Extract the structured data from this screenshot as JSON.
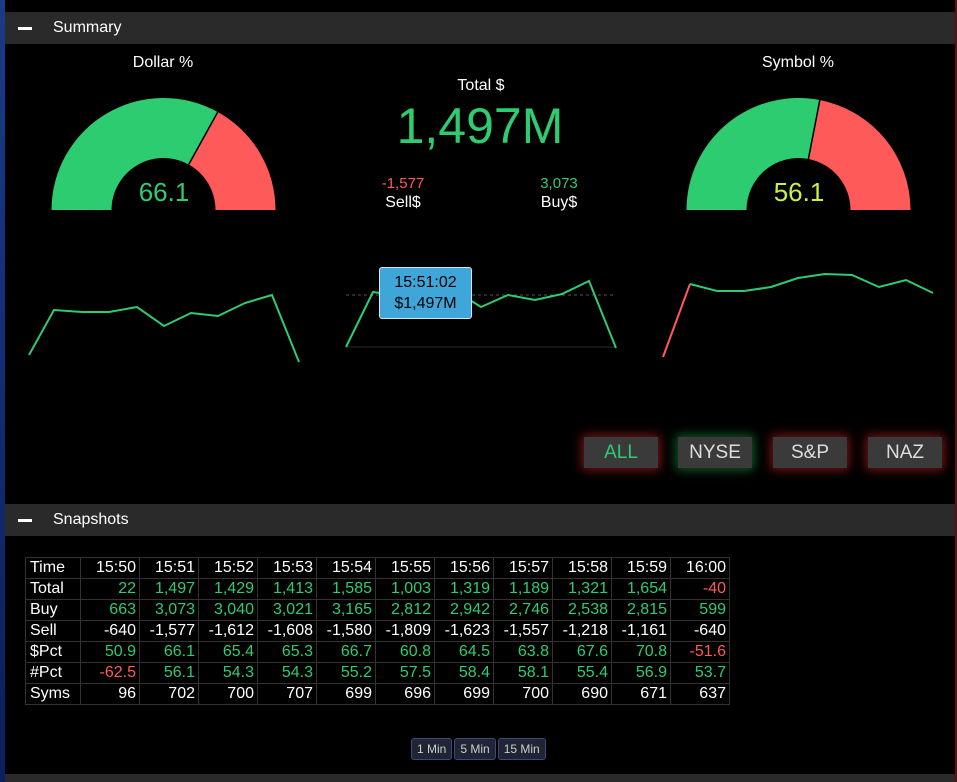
{
  "summary": {
    "header": "Summary",
    "dollar_title": "Dollar %",
    "dollar_value": "66.1",
    "dollar_pct": 66.1,
    "symbol_title": "Symbol %",
    "symbol_value": "56.1",
    "symbol_pct": 56.1,
    "total_title": "Total $",
    "total_value": "1,497M",
    "sell_value": "-1,577",
    "sell_label": "Sell$",
    "buy_value": "3,073",
    "buy_label": "Buy$",
    "tooltip_time": "15:51:02",
    "tooltip_value": "$1,497M",
    "colors": {
      "green": "#2ecc71",
      "red": "#ff5a5a",
      "yellow": "#c8f04a"
    }
  },
  "filters": [
    "ALL",
    "NYSE",
    "S&P",
    "NAZ"
  ],
  "snapshots": {
    "header": "Snapshots",
    "times": [
      "15:50",
      "15:51",
      "15:52",
      "15:53",
      "15:54",
      "15:55",
      "15:56",
      "15:57",
      "15:58",
      "15:59",
      "16:00"
    ],
    "rows": [
      {
        "label": "Total",
        "values": [
          "22",
          "1,497",
          "1,429",
          "1,413",
          "1,585",
          "1,003",
          "1,319",
          "1,189",
          "1,321",
          "1,654",
          "-40"
        ]
      },
      {
        "label": "Buy",
        "values": [
          "663",
          "3,073",
          "3,040",
          "3,021",
          "3,165",
          "2,812",
          "2,942",
          "2,746",
          "2,538",
          "2,815",
          "599"
        ]
      },
      {
        "label": "Sell",
        "values": [
          "-640",
          "-1,577",
          "-1,612",
          "-1,608",
          "-1,580",
          "-1,809",
          "-1,623",
          "-1,557",
          "-1,218",
          "-1,161",
          "-640"
        ]
      },
      {
        "label": "$Pct",
        "values": [
          "50.9",
          "66.1",
          "65.4",
          "65.3",
          "66.7",
          "60.8",
          "64.5",
          "63.8",
          "67.6",
          "70.8",
          "-51.6"
        ]
      },
      {
        "label": "#Pct",
        "values": [
          "-62.5",
          "56.1",
          "54.3",
          "54.3",
          "55.2",
          "57.5",
          "58.4",
          "58.1",
          "55.4",
          "56.9",
          "53.7"
        ]
      },
      {
        "label": "Syms",
        "values": [
          "96",
          "702",
          "700",
          "707",
          "699",
          "696",
          "699",
          "700",
          "690",
          "671",
          "637"
        ]
      }
    ],
    "intervals": [
      "1 Min",
      "5 Min",
      "15 Min"
    ]
  }
}
